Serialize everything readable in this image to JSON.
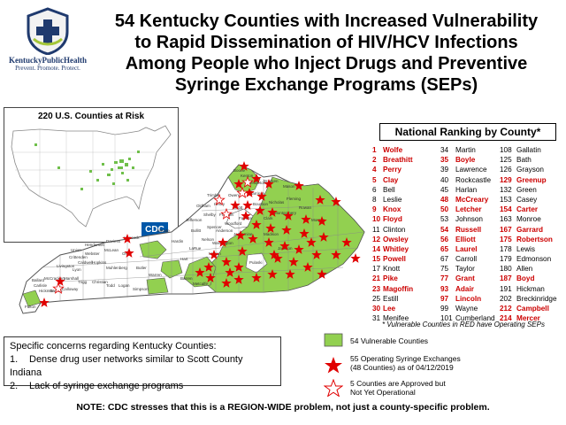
{
  "header": {
    "title_lines": [
      "54 Kentucky Counties with Increased Vulnerability",
      "to Rapid Dissemination of HIV/HCV Infections",
      "Among People who Inject Drugs and Preventive",
      "Syringe Exchange Programs (SEPs)"
    ]
  },
  "logo": {
    "name": "KentuckyPublicHealth",
    "tagline": "Prevent. Promote. Protect.",
    "icon": "kentucky-shield-icon"
  },
  "inset": {
    "title": "220 U.S. Counties at Risk",
    "cdc_label": "CDC"
  },
  "ranking": {
    "heading": "National Ranking by County*",
    "columns": [
      [
        {
          "rank": "1",
          "county": "Wolfe",
          "sep": true
        },
        {
          "rank": "2",
          "county": "Breathitt",
          "sep": true
        },
        {
          "rank": "4",
          "county": "Perry",
          "sep": true
        },
        {
          "rank": "5",
          "county": "Clay",
          "sep": true
        },
        {
          "rank": "6",
          "county": "Bell",
          "sep": false
        },
        {
          "rank": "8",
          "county": "Leslie",
          "sep": false
        },
        {
          "rank": "9",
          "county": "Knox",
          "sep": true
        },
        {
          "rank": "10",
          "county": "Floyd",
          "sep": true
        },
        {
          "rank": "11",
          "county": "Clinton",
          "sep": false
        },
        {
          "rank": "12",
          "county": "Owsley",
          "sep": true
        },
        {
          "rank": "14",
          "county": "Whitley",
          "sep": true
        },
        {
          "rank": "15",
          "county": "Powell",
          "sep": true
        },
        {
          "rank": "17",
          "county": "Knott",
          "sep": false
        },
        {
          "rank": "21",
          "county": "Pike",
          "sep": true
        },
        {
          "rank": "23",
          "county": "Magoffin",
          "sep": true
        },
        {
          "rank": "25",
          "county": "Estill",
          "sep": false
        },
        {
          "rank": "30",
          "county": "Lee",
          "sep": true
        },
        {
          "rank": "31",
          "county": "Menifee",
          "sep": false
        }
      ],
      [
        {
          "rank": "34",
          "county": "Martin",
          "sep": false
        },
        {
          "rank": "35",
          "county": "Boyle",
          "sep": true
        },
        {
          "rank": "39",
          "county": "Lawrence",
          "sep": false
        },
        {
          "rank": "40",
          "county": "Rockcastle",
          "sep": false
        },
        {
          "rank": "45",
          "county": "Harlan",
          "sep": false
        },
        {
          "rank": "48",
          "county": "McCreary",
          "sep": true
        },
        {
          "rank": "50",
          "county": "Letcher",
          "sep": true
        },
        {
          "rank": "53",
          "county": "Johnson",
          "sep": false
        },
        {
          "rank": "54",
          "county": "Russell",
          "sep": true
        },
        {
          "rank": "56",
          "county": "Elliott",
          "sep": true
        },
        {
          "rank": "65",
          "county": "Laurel",
          "sep": true
        },
        {
          "rank": "67",
          "county": "Carroll",
          "sep": false
        },
        {
          "rank": "75",
          "county": "Taylor",
          "sep": false
        },
        {
          "rank": "77",
          "county": "Grant",
          "sep": true
        },
        {
          "rank": "93",
          "county": "Adair",
          "sep": true
        },
        {
          "rank": "97",
          "county": "Lincoln",
          "sep": true
        },
        {
          "rank": "99",
          "county": "Wayne",
          "sep": false
        },
        {
          "rank": "101",
          "county": "Cumberland",
          "sep": false
        }
      ],
      [
        {
          "rank": "108",
          "county": "Gallatin",
          "sep": false
        },
        {
          "rank": "125",
          "county": "Bath",
          "sep": false
        },
        {
          "rank": "126",
          "county": "Grayson",
          "sep": false
        },
        {
          "rank": "129",
          "county": "Greenup",
          "sep": true
        },
        {
          "rank": "132",
          "county": "Green",
          "sep": false
        },
        {
          "rank": "153",
          "county": "Casey",
          "sep": false
        },
        {
          "rank": "154",
          "county": "Carter",
          "sep": true
        },
        {
          "rank": "163",
          "county": "Monroe",
          "sep": false
        },
        {
          "rank": "167",
          "county": "Garrard",
          "sep": true
        },
        {
          "rank": "175",
          "county": "Robertson",
          "sep": true
        },
        {
          "rank": "178",
          "county": "Lewis",
          "sep": false
        },
        {
          "rank": "179",
          "county": "Edmonson",
          "sep": false
        },
        {
          "rank": "180",
          "county": "Allen",
          "sep": false
        },
        {
          "rank": "187",
          "county": "Boyd",
          "sep": true
        },
        {
          "rank": "191",
          "county": "Hickman",
          "sep": false
        },
        {
          "rank": "202",
          "county": "Breckinridge",
          "sep": false
        },
        {
          "rank": "212",
          "county": "Campbell",
          "sep": true
        },
        {
          "rank": "214",
          "county": "Mercer",
          "sep": true
        }
      ]
    ],
    "footnote": "* Vulnerable Counties in RED have Operating SEPs"
  },
  "legend": {
    "vulnerable": "54 Vulnerable Counties",
    "operating_line1": "55 Operating Syringe Exchanges",
    "operating_line2": "(48 Counties) as of 04/12/2019",
    "approved_line1": "5 Counties are Approved but",
    "approved_line2": "Not Yet Operational"
  },
  "concerns": {
    "heading": "Specific concerns regarding Kentucky Counties:",
    "items": [
      {
        "num": "1.",
        "text": "Dense drug user networks similar to Scott County Indiana"
      },
      {
        "num": "2.",
        "text": "Lack of syringe exchange programs"
      }
    ]
  },
  "map_labels": {
    "fulton": "Fulton",
    "hickman": "Hickman",
    "graves": "Graves",
    "calloway": "Calloway",
    "mccracken": "McCracken",
    "marshall": "Marshall",
    "ballard": "Ballard",
    "carlisle": "Carlisle",
    "livingston": "Livingston",
    "lyon": "Lyon",
    "trigg": "Trigg",
    "christian": "Christian",
    "caldwell": "Caldwell",
    "crittenden": "Crittenden",
    "union": "Union",
    "henderson": "Henderson",
    "webster": "Webster",
    "hopkins": "Hopkins",
    "daviess": "Daviess",
    "hancock": "Hancock",
    "mclean": "McLean",
    "muhlenberg": "Muhlenberg",
    "ohio": "Ohio",
    "todd": "Todd",
    "logan": "Logan",
    "butler": "Butler",
    "warren": "Warren",
    "simpson": "Simpson",
    "barren": "Barren",
    "hart": "Hart",
    "larue": "LaRue",
    "hardin": "Hardin",
    "meade": "Meade",
    "jefferson": "Jefferson",
    "bullitt": "Bullitt",
    "nelson": "Nelson",
    "spencer": "Spencer",
    "shelby": "Shelby",
    "oldham": "Oldham",
    "trimble": "Trimble",
    "henry": "Henry",
    "franklin": "Franklin",
    "scott": "Scott",
    "owen": "Owen",
    "woodford": "Woodford",
    "jessamine": "Jessamine",
    "fayette": "Fayette",
    "anderson": "Anderson",
    "washington": "Washington",
    "marion": "Marion",
    "metcalfe": "Metcalfe",
    "pulaski": "Pulaski",
    "madison": "Madison",
    "clark": "Clark",
    "montgomery": "Montgomery",
    "bourbon": "Bourbon",
    "harrison": "Harrison",
    "fleming": "Fleming",
    "mason": "Mason",
    "pendleton": "Pendleton",
    "boone": "Boone",
    "kenton": "Kenton",
    "bracken": "Bracken",
    "nicholas": "Nicholas",
    "rowan": "Rowan",
    "morgan": "Morgan",
    "jackson": "Jackson",
    "todd2": "Todd"
  },
  "bottom_note": "NOTE:  CDC stresses that this is a REGION-WIDE problem, not just a county-specific problem.",
  "colors": {
    "vulnerable_green": "#92d050",
    "sep_red": "#e00000",
    "logo_blue": "#1f3a6e",
    "cdc_blue": "#0057a8"
  }
}
